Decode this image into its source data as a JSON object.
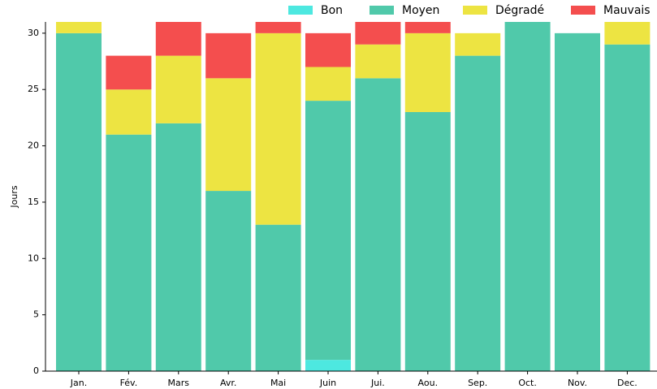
{
  "chart_data": {
    "type": "stacked_bar",
    "y_label": "Jours",
    "categories": [
      "Jan.",
      "Fév.",
      "Mars",
      "Avr.",
      "Mai",
      "Juin",
      "Jui.",
      "Aou.",
      "Sep.",
      "Oct.",
      "Nov.",
      "Dec."
    ],
    "series": [
      {
        "name": "Bon",
        "color": "#4de8e0",
        "values": [
          0,
          0,
          0,
          0,
          0,
          1,
          0,
          0,
          0,
          0,
          0,
          0
        ]
      },
      {
        "name": "Moyen",
        "color": "#50c9aa",
        "values": [
          30,
          21,
          22,
          16,
          13,
          23,
          26,
          23,
          28,
          31,
          30,
          29
        ]
      },
      {
        "name": "Dégradé",
        "color": "#ede442",
        "values": [
          1,
          4,
          6,
          10,
          17,
          3,
          3,
          7,
          2,
          0,
          0,
          2
        ]
      },
      {
        "name": "Mauvais",
        "color": "#f44e4e",
        "values": [
          0,
          3,
          3,
          4,
          1,
          3,
          2,
          1,
          0,
          0,
          0,
          0
        ]
      }
    ],
    "ylim": [
      0,
      31
    ],
    "yticks": [
      0,
      5,
      10,
      15,
      20,
      25,
      30
    ],
    "legend": "top-right"
  }
}
